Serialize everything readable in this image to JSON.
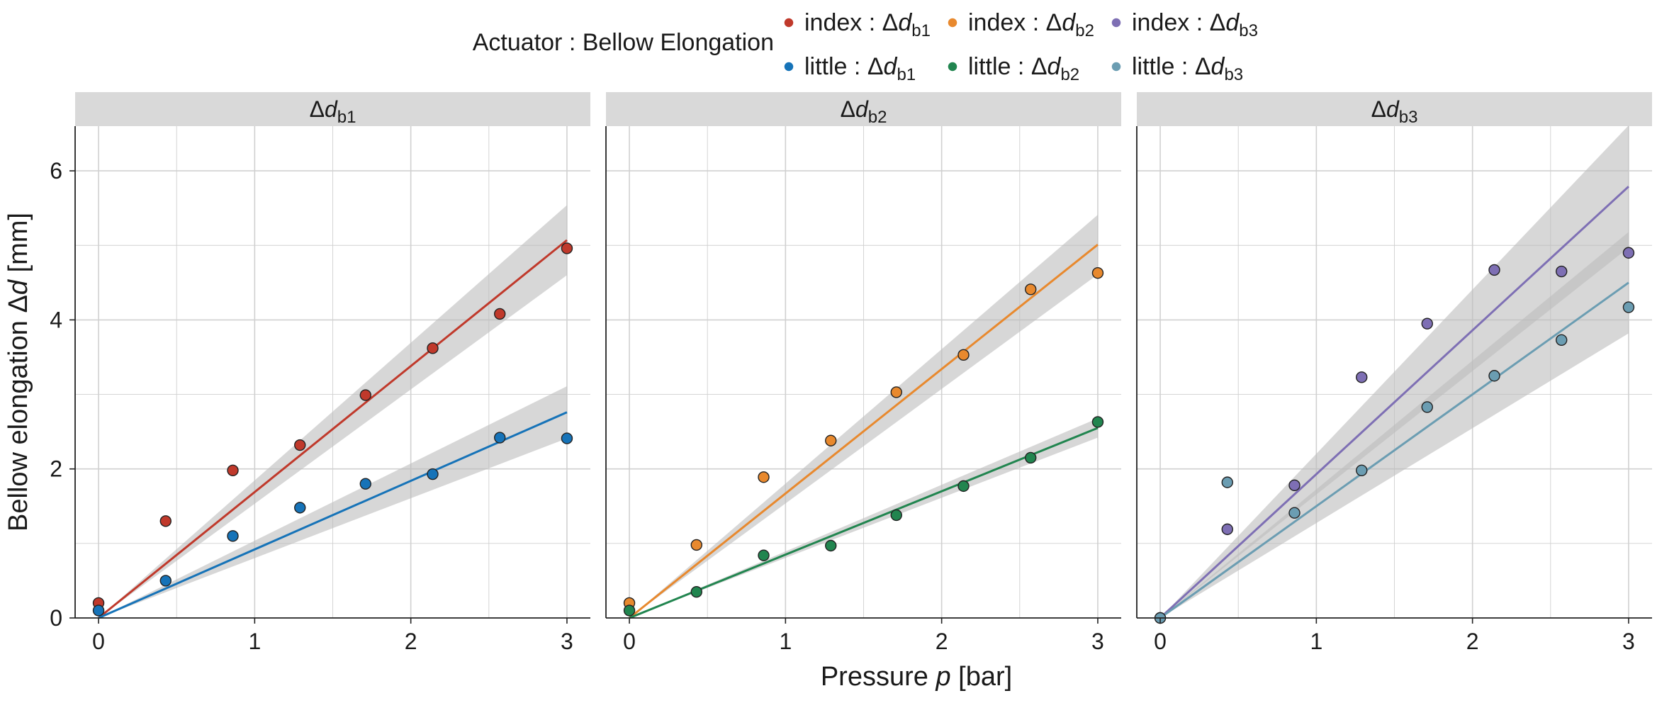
{
  "legend": {
    "title": "Actuator : Bellow Elongation",
    "entries": [
      {
        "finger": "index",
        "sub": "b1",
        "color": "#c0392b"
      },
      {
        "finger": "index",
        "sub": "b2",
        "color": "#e8892e"
      },
      {
        "finger": "index",
        "sub": "b3",
        "color": "#7e6fb4"
      },
      {
        "finger": "little",
        "sub": "b1",
        "color": "#1673b8"
      },
      {
        "finger": "little",
        "sub": "b2",
        "color": "#21854f"
      },
      {
        "finger": "little",
        "sub": "b3",
        "color": "#6b9db2"
      }
    ]
  },
  "axes": {
    "xlabel": "Pressure p [bar]",
    "ylabel": "Bellow elongation Δd [mm]"
  },
  "colors": {
    "strip_bg": "#d9d9d9",
    "band": "#bdbdbd",
    "grid": "#d0d0d0"
  },
  "chart_data": [
    {
      "type": "scatter",
      "panel": "Δd b1",
      "xlim": [
        -0.15,
        3.15
      ],
      "ylim": [
        0,
        6.6
      ],
      "xticks": [
        0,
        1,
        2,
        3
      ],
      "yticks": [
        0,
        2,
        4,
        6
      ],
      "grid": true,
      "series": [
        {
          "name": "index : Δd b1",
          "color": "#c0392b",
          "x": [
            0,
            0.43,
            0.86,
            1.29,
            1.71,
            2.14,
            2.57,
            3.0
          ],
          "y": [
            0.2,
            1.3,
            1.98,
            2.32,
            2.99,
            3.62,
            4.08,
            4.96
          ],
          "fit_slope": 1.69,
          "ci_at_max": 0.47
        },
        {
          "name": "little : Δd b1",
          "color": "#1673b8",
          "x": [
            0,
            0.43,
            0.86,
            1.29,
            1.71,
            2.14,
            2.57,
            3.0
          ],
          "y": [
            0.1,
            0.5,
            1.1,
            1.48,
            1.8,
            1.93,
            2.42,
            2.41
          ],
          "fit_slope": 0.92,
          "ci_at_max": 0.35
        }
      ]
    },
    {
      "type": "scatter",
      "panel": "Δd b2",
      "xlim": [
        -0.15,
        3.15
      ],
      "ylim": [
        0,
        6.6
      ],
      "xticks": [
        0,
        1,
        2,
        3
      ],
      "yticks": [
        0,
        2,
        4,
        6
      ],
      "grid": true,
      "series": [
        {
          "name": "index : Δd b2",
          "color": "#e8892e",
          "x": [
            0,
            0.43,
            0.86,
            1.29,
            1.71,
            2.14,
            2.57,
            3.0
          ],
          "y": [
            0.2,
            0.98,
            1.89,
            2.38,
            3.03,
            3.53,
            4.41,
            4.63
          ],
          "fit_slope": 1.67,
          "ci_at_max": 0.4
        },
        {
          "name": "little : Δd b2",
          "color": "#21854f",
          "x": [
            0,
            0.43,
            0.86,
            1.29,
            1.71,
            2.14,
            2.57,
            3.0
          ],
          "y": [
            0.1,
            0.35,
            0.84,
            0.97,
            1.38,
            1.77,
            2.15,
            2.63
          ],
          "fit_slope": 0.85,
          "ci_at_max": 0.13
        }
      ]
    },
    {
      "type": "scatter",
      "panel": "Δd b3",
      "xlim": [
        -0.15,
        3.15
      ],
      "ylim": [
        0,
        6.6
      ],
      "xticks": [
        0,
        1,
        2,
        3
      ],
      "yticks": [
        0,
        2,
        4,
        6
      ],
      "grid": true,
      "series": [
        {
          "name": "index : Δd b3",
          "color": "#7e6fb4",
          "x": [
            0,
            0.43,
            0.86,
            1.29,
            1.71,
            2.14,
            2.57,
            3.0
          ],
          "y": [
            0,
            1.19,
            1.78,
            3.23,
            3.95,
            4.67,
            4.65,
            4.9
          ],
          "fit_slope": 1.93,
          "ci_at_max": 0.82
        },
        {
          "name": "little : Δd b3",
          "color": "#6b9db2",
          "x": [
            0,
            0.43,
            0.86,
            1.29,
            1.71,
            2.14,
            2.57,
            3.0
          ],
          "y": [
            0,
            1.82,
            1.41,
            1.98,
            2.83,
            3.25,
            3.73,
            4.17
          ],
          "fit_slope": 1.5,
          "ci_at_max": 0.68
        }
      ]
    }
  ]
}
